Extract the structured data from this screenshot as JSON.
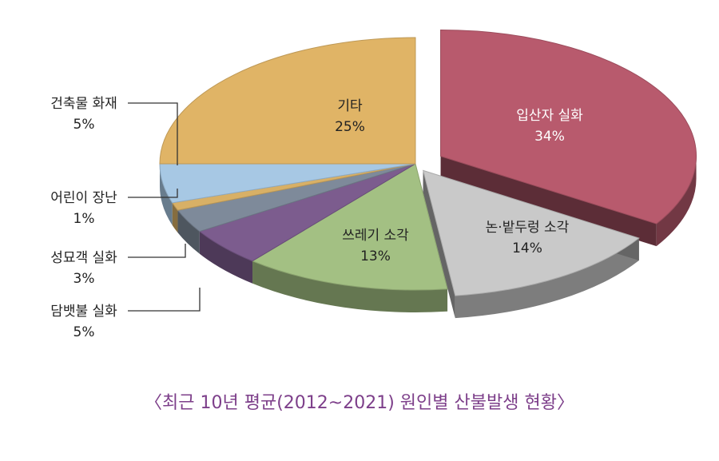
{
  "chart_data": {
    "type": "pie",
    "title": "〈최근 10년 평균(2012~2021) 원인별 산불발생 현황〉",
    "slices": [
      {
        "label": "입산자 실화",
        "value": 34,
        "value_label": "34%",
        "color": "#b85a6d"
      },
      {
        "label": "논·밭두렁 소각",
        "value": 14,
        "value_label": "14%",
        "color": "#c9c9c9"
      },
      {
        "label": "쓰레기 소각",
        "value": 13,
        "value_label": "13%",
        "color": "#a3c083"
      },
      {
        "label": "담뱃불 실화",
        "value": 5,
        "value_label": "5%",
        "color": "#7c5c8e"
      },
      {
        "label": "성묘객 실화",
        "value": 3,
        "value_label": "3%",
        "color": "#7e8a9a"
      },
      {
        "label": "어린이 장난",
        "value": 1,
        "value_label": "1%",
        "color": "#d8b066"
      },
      {
        "label": "건축물 화재",
        "value": 5,
        "value_label": "5%",
        "color": "#a7c8e4"
      },
      {
        "label": "기타",
        "value": 25,
        "value_label": "25%",
        "color": "#e0b466"
      }
    ]
  }
}
